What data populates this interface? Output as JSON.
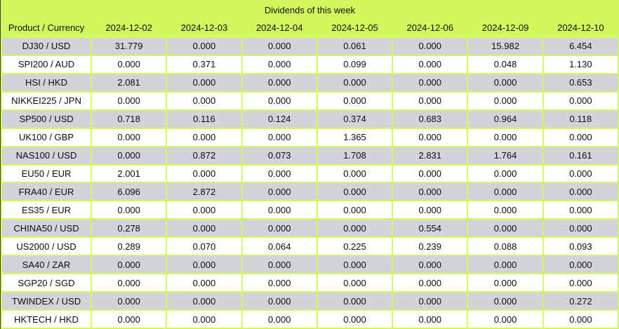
{
  "colors": {
    "accent_green": "#d3f85c",
    "row_gray": "#d3d4da",
    "row_white": "#ffffff",
    "text": "#0d0d0d",
    "outer_left_border": "#3f3f3f"
  },
  "table": {
    "title": "Dividends of this week",
    "product_header": "Product / Currency",
    "date_headers": [
      "2024-12-02",
      "2024-12-03",
      "2024-12-04",
      "2024-12-05",
      "2024-12-06",
      "2024-12-09",
      "2024-12-10"
    ],
    "rows": [
      {
        "product": "DJ30 / USD",
        "values": [
          "31.779",
          "0.000",
          "0.000",
          "0.061",
          "0.000",
          "15.982",
          "6.454"
        ]
      },
      {
        "product": "SPI200 / AUD",
        "values": [
          "0.000",
          "0.371",
          "0.000",
          "0.099",
          "0.000",
          "0.048",
          "1.130"
        ]
      },
      {
        "product": "HSI / HKD",
        "values": [
          "2.081",
          "0.000",
          "0.000",
          "0.000",
          "0.000",
          "0.000",
          "0.653"
        ]
      },
      {
        "product": "NIKKEI225 / JPN",
        "values": [
          "0.000",
          "0.000",
          "0.000",
          "0.000",
          "0.000",
          "0.000",
          "0.000"
        ]
      },
      {
        "product": "SP500 / USD",
        "values": [
          "0.718",
          "0.116",
          "0.124",
          "0.374",
          "0.683",
          "0.964",
          "0.118"
        ]
      },
      {
        "product": "UK100 / GBP",
        "values": [
          "0.000",
          "0.000",
          "0.000",
          "1.365",
          "0.000",
          "0.000",
          "0.000"
        ]
      },
      {
        "product": "NAS100 / USD",
        "values": [
          "0.000",
          "0.872",
          "0.073",
          "1.708",
          "2.831",
          "1.764",
          "0.161"
        ]
      },
      {
        "product": "EU50 / EUR",
        "values": [
          "2.001",
          "0.000",
          "0.000",
          "0.000",
          "0.000",
          "0.000",
          "0.000"
        ]
      },
      {
        "product": "FRA40 / EUR",
        "values": [
          "6.096",
          "2.872",
          "0.000",
          "0.000",
          "0.000",
          "0.000",
          "0.000"
        ]
      },
      {
        "product": "ES35 / EUR",
        "values": [
          "0.000",
          "0.000",
          "0.000",
          "0.000",
          "0.000",
          "0.000",
          "0.000"
        ]
      },
      {
        "product": "CHINA50 / USD",
        "values": [
          "0.278",
          "0.000",
          "0.000",
          "0.000",
          "0.554",
          "0.000",
          "0.000"
        ]
      },
      {
        "product": "US2000 / USD",
        "values": [
          "0.289",
          "0.070",
          "0.064",
          "0.225",
          "0.239",
          "0.088",
          "0.093"
        ]
      },
      {
        "product": "SA40 / ZAR",
        "values": [
          "0.000",
          "0.000",
          "0.000",
          "0.000",
          "0.000",
          "0.000",
          "0.000"
        ]
      },
      {
        "product": "SGP20 / SGD",
        "values": [
          "0.000",
          "0.000",
          "0.000",
          "0.000",
          "0.000",
          "0.000",
          "0.000"
        ]
      },
      {
        "product": "TWINDEX / USD",
        "values": [
          "0.000",
          "0.000",
          "0.000",
          "0.000",
          "0.000",
          "0.000",
          "0.272"
        ]
      },
      {
        "product": "HKTECH / HKD",
        "values": [
          "0.000",
          "0.000",
          "0.000",
          "0.000",
          "0.000",
          "0.000",
          "0.000"
        ]
      }
    ]
  },
  "chart_data": {
    "type": "table",
    "title": "Dividends of this week",
    "columns": [
      "Product / Currency",
      "2024-12-02",
      "2024-12-03",
      "2024-12-04",
      "2024-12-05",
      "2024-12-06",
      "2024-12-09",
      "2024-12-10"
    ],
    "rows": [
      [
        "DJ30 / USD",
        31.779,
        0.0,
        0.0,
        0.061,
        0.0,
        15.982,
        6.454
      ],
      [
        "SPI200 / AUD",
        0.0,
        0.371,
        0.0,
        0.099,
        0.0,
        0.048,
        1.13
      ],
      [
        "HSI / HKD",
        2.081,
        0.0,
        0.0,
        0.0,
        0.0,
        0.0,
        0.653
      ],
      [
        "NIKKEI225 / JPN",
        0.0,
        0.0,
        0.0,
        0.0,
        0.0,
        0.0,
        0.0
      ],
      [
        "SP500 / USD",
        0.718,
        0.116,
        0.124,
        0.374,
        0.683,
        0.964,
        0.118
      ],
      [
        "UK100 / GBP",
        0.0,
        0.0,
        0.0,
        1.365,
        0.0,
        0.0,
        0.0
      ],
      [
        "NAS100 / USD",
        0.0,
        0.872,
        0.073,
        1.708,
        2.831,
        1.764,
        0.161
      ],
      [
        "EU50 / EUR",
        2.001,
        0.0,
        0.0,
        0.0,
        0.0,
        0.0,
        0.0
      ],
      [
        "FRA40 / EUR",
        6.096,
        2.872,
        0.0,
        0.0,
        0.0,
        0.0,
        0.0
      ],
      [
        "ES35 / EUR",
        0.0,
        0.0,
        0.0,
        0.0,
        0.0,
        0.0,
        0.0
      ],
      [
        "CHINA50 / USD",
        0.278,
        0.0,
        0.0,
        0.0,
        0.554,
        0.0,
        0.0
      ],
      [
        "US2000 / USD",
        0.289,
        0.07,
        0.064,
        0.225,
        0.239,
        0.088,
        0.093
      ],
      [
        "SA40 / ZAR",
        0.0,
        0.0,
        0.0,
        0.0,
        0.0,
        0.0,
        0.0
      ],
      [
        "SGP20 / SGD",
        0.0,
        0.0,
        0.0,
        0.0,
        0.0,
        0.0,
        0.0
      ],
      [
        "TWINDEX / USD",
        0.0,
        0.0,
        0.0,
        0.0,
        0.0,
        0.0,
        0.272
      ],
      [
        "HKTECH / HKD",
        0.0,
        0.0,
        0.0,
        0.0,
        0.0,
        0.0,
        0.0
      ]
    ]
  }
}
